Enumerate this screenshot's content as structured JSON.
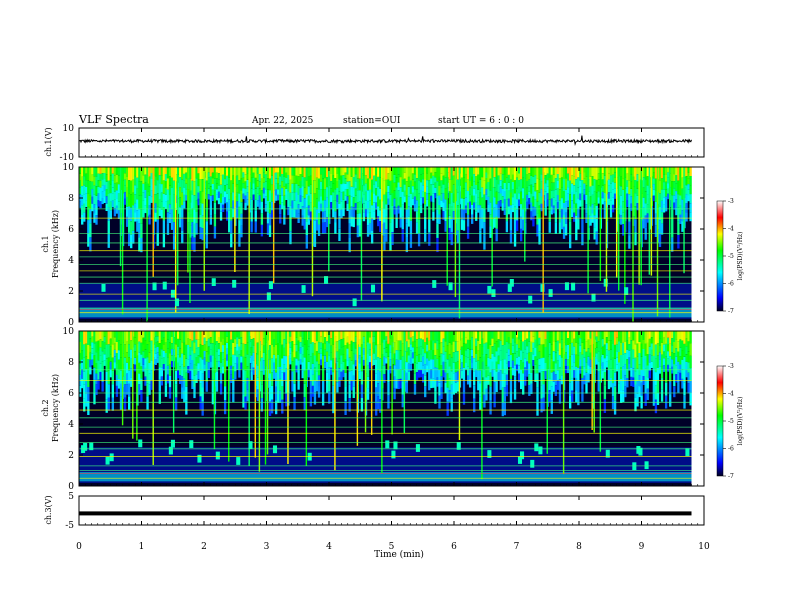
{
  "header": {
    "title": "VLF Spectra",
    "date": "Apr. 22, 2025",
    "station": "station=OUI",
    "start": "start  UT =   6 : 0  : 0"
  },
  "panels": {
    "ch1": {
      "ylabel": "ch.1(V)",
      "ticks": [
        "10",
        "-10"
      ]
    },
    "spec1": {
      "ylabel_1": "ch.1",
      "ylabel_2": "Frequency (kHz)"
    },
    "spec2": {
      "ylabel_1": "ch.2",
      "ylabel_2": "Frequency (kHz)"
    },
    "ch3": {
      "ylabel": "ch.3(V)",
      "ticks": [
        "5",
        "-5"
      ]
    }
  },
  "colorbar": {
    "label": "log(PSD)(V²/Hz)",
    "ticks": [
      "-3",
      "-4",
      "-5",
      "-6",
      "-7"
    ],
    "colors": [
      "#ffffff",
      "#ff0000",
      "#ffff00",
      "#00ff00",
      "#00ffff",
      "#0000ff",
      "#000020"
    ]
  },
  "chart_data": [
    {
      "type": "line",
      "name": "ch.1 waveform",
      "ylabel": "ch.1(V)",
      "ylim": [
        -10,
        10
      ],
      "xlim": [
        0,
        10
      ],
      "baseline": 1,
      "noise_amplitude": 1
    },
    {
      "type": "heatmap",
      "name": "ch.1 spectrogram",
      "xlabel": "Time (min)",
      "ylabel": "Frequency (kHz)",
      "xlim": [
        0,
        10
      ],
      "ylim": [
        0,
        10
      ],
      "data_extent_min": 9.8,
      "yticks": [
        "0",
        "2",
        "4",
        "6",
        "8",
        "10"
      ],
      "zlim": [
        -7,
        -3
      ],
      "hlines_khz": [
        0.6,
        0.9,
        1.4,
        1.8,
        2.5,
        2.9,
        3.3,
        3.7,
        4.2,
        4.6,
        5.1,
        5.7,
        6.7,
        7.3
      ]
    },
    {
      "type": "heatmap",
      "name": "ch.2 spectrogram",
      "xlabel": "Time (min)",
      "ylabel": "Frequency (kHz)",
      "xlim": [
        0,
        10
      ],
      "ylim": [
        0,
        10
      ],
      "data_extent_min": 9.8,
      "yticks": [
        "0",
        "2",
        "4",
        "6",
        "8",
        "10"
      ],
      "zlim": [
        -7,
        -3
      ],
      "hlines_khz": [
        0.5,
        1.0,
        1.3,
        1.9,
        2.4,
        2.8,
        3.4,
        3.8,
        4.4,
        4.9,
        5.4,
        6.0,
        6.8,
        7.5
      ]
    },
    {
      "type": "line",
      "name": "ch.3 waveform",
      "ylabel": "ch.3(V)",
      "ylim": [
        -5,
        5
      ],
      "xlim": [
        0,
        10
      ],
      "baseline": -1,
      "xlabel": "Time (min)",
      "xticks": [
        "0",
        "1",
        "2",
        "3",
        "4",
        "5",
        "6",
        "7",
        "8",
        "9",
        "10"
      ]
    }
  ]
}
